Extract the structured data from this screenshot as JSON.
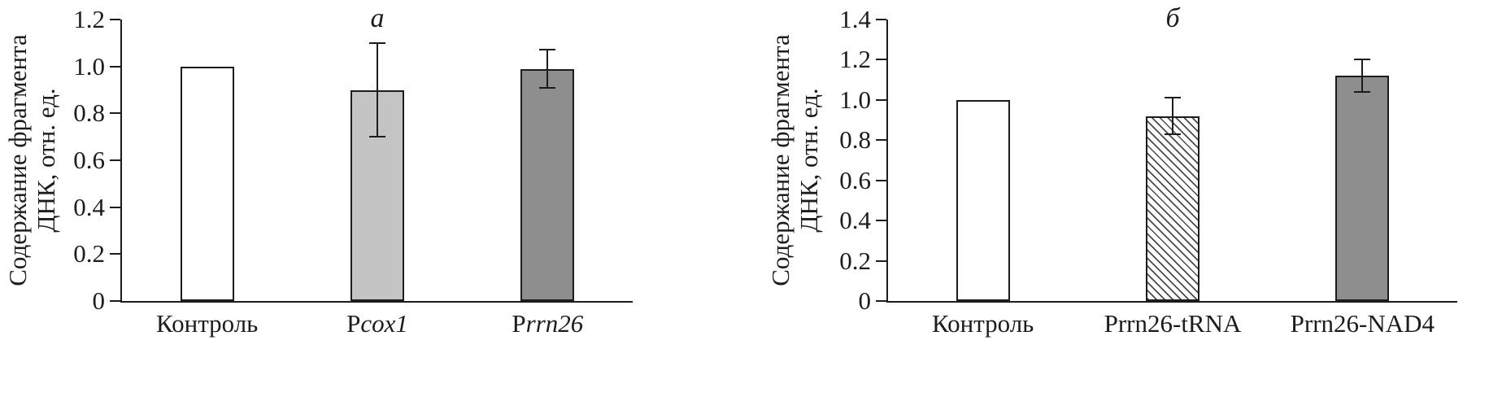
{
  "figure": {
    "background": "#ffffff",
    "axis_color": "#1c1c1c"
  },
  "chart_data": [
    {
      "type": "bar",
      "panel_label": "а",
      "title": "",
      "xlabel": "",
      "ylabel": "Содержание фрагмента ДНК, отн. ед.",
      "ylabel_lines": [
        "Содержание фрагмента",
        "ДНК, отн. ед."
      ],
      "ylim": [
        0,
        1.2
      ],
      "yticks": [
        0,
        0.2,
        0.4,
        0.6,
        0.8,
        1.0,
        1.2
      ],
      "ytick_labels": [
        "0",
        "0.2",
        "0.4",
        "0.6",
        "0.8",
        "1.0",
        "1.2"
      ],
      "grid": false,
      "legend": null,
      "categories": [
        "Контроль",
        "Pcox1",
        "Prrn26"
      ],
      "category_parts": [
        [
          {
            "text": "Контроль",
            "italic": false
          }
        ],
        [
          {
            "text": "P",
            "italic": false
          },
          {
            "text": "cox1",
            "italic": true
          }
        ],
        [
          {
            "text": "P",
            "italic": false
          },
          {
            "text": "rrn26",
            "italic": true
          }
        ]
      ],
      "values": [
        1.0,
        0.9,
        0.99
      ],
      "errors": [
        0,
        0.2,
        0.08
      ],
      "bar_styles": [
        {
          "fill": "#ffffff",
          "hatch": false
        },
        {
          "fill": "#c4c4c4",
          "hatch": false
        },
        {
          "fill": "#8e8e8e",
          "hatch": false
        }
      ]
    },
    {
      "type": "bar",
      "panel_label": "б",
      "title": "",
      "xlabel": "",
      "ylabel": "Содержание фрагмента ДНК, отн. ед.",
      "ylabel_lines": [
        "Содержание фрагмента",
        "ДНК, отн. ед."
      ],
      "ylim": [
        0,
        1.4
      ],
      "yticks": [
        0,
        0.2,
        0.4,
        0.6,
        0.8,
        1.0,
        1.2,
        1.4
      ],
      "ytick_labels": [
        "0",
        "0.2",
        "0.4",
        "0.6",
        "0.8",
        "1.0",
        "1.2",
        "1.4"
      ],
      "grid": false,
      "legend": null,
      "categories": [
        "Контроль",
        "Prrn26-tRNA",
        "Prrn26-NAD4"
      ],
      "category_parts": [
        [
          {
            "text": "Контроль",
            "italic": false
          }
        ],
        [
          {
            "text": "Prrn26-tRNA",
            "italic": false
          }
        ],
        [
          {
            "text": "Prrn26-NAD4",
            "italic": false
          }
        ]
      ],
      "values": [
        1.0,
        0.92,
        1.12
      ],
      "errors": [
        0,
        0.09,
        0.08
      ],
      "bar_styles": [
        {
          "fill": "#ffffff",
          "hatch": false
        },
        {
          "fill": "#ffffff",
          "hatch": true
        },
        {
          "fill": "#8e8e8e",
          "hatch": false
        }
      ]
    }
  ]
}
